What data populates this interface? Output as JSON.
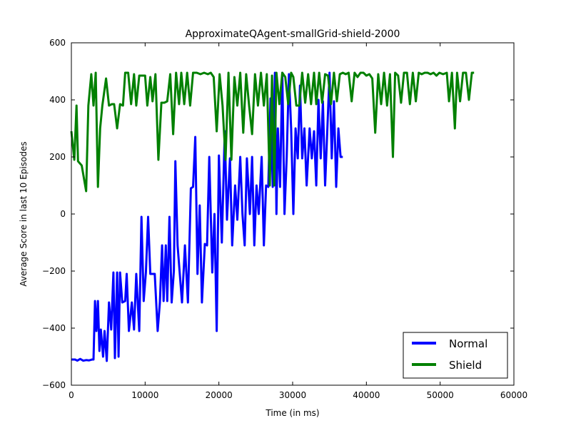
{
  "chart_data": {
    "type": "line",
    "title": "ApproximateQAgent-smallGrid-shield-2000",
    "xlabel": "Time (in ms)",
    "ylabel": "Average Score in last 10 Episodes",
    "xlim": [
      0,
      60000
    ],
    "ylim": [
      -600,
      600
    ],
    "xticks": [
      0,
      10000,
      20000,
      30000,
      40000,
      50000,
      60000
    ],
    "xtick_labels": [
      "0",
      "10000",
      "20000",
      "30000",
      "40000",
      "50000",
      "60000"
    ],
    "yticks": [
      -600,
      -400,
      -200,
      0,
      200,
      400,
      600
    ],
    "ytick_labels": [
      "−600",
      "−400",
      "−200",
      "0",
      "200",
      "400",
      "600"
    ],
    "grid": false,
    "legend_position": "lower-right",
    "series": [
      {
        "name": "Normal",
        "color": "#0000ff",
        "points": [
          [
            0,
            -510
          ],
          [
            500,
            -510
          ],
          [
            800,
            -514
          ],
          [
            1200,
            -508
          ],
          [
            1600,
            -514
          ],
          [
            2000,
            -512
          ],
          [
            2400,
            -513
          ],
          [
            2800,
            -510
          ],
          [
            3000,
            -510
          ],
          [
            3200,
            -305
          ],
          [
            3400,
            -410
          ],
          [
            3600,
            -305
          ],
          [
            3800,
            -480
          ],
          [
            4000,
            -405
          ],
          [
            4300,
            -500
          ],
          [
            4500,
            -410
          ],
          [
            4800,
            -515
          ],
          [
            5100,
            -310
          ],
          [
            5400,
            -405
          ],
          [
            5700,
            -205
          ],
          [
            5900,
            -505
          ],
          [
            6200,
            -205
          ],
          [
            6400,
            -500
          ],
          [
            6600,
            -205
          ],
          [
            6900,
            -310
          ],
          [
            7300,
            -305
          ],
          [
            7500,
            -210
          ],
          [
            7800,
            -410
          ],
          [
            8200,
            -310
          ],
          [
            8500,
            -405
          ],
          [
            8800,
            -210
          ],
          [
            9200,
            -410
          ],
          [
            9500,
            -10
          ],
          [
            9800,
            -305
          ],
          [
            10100,
            -205
          ],
          [
            10400,
            -10
          ],
          [
            10700,
            -210
          ],
          [
            11300,
            -210
          ],
          [
            11700,
            -410
          ],
          [
            12000,
            -310
          ],
          [
            12300,
            -110
          ],
          [
            12500,
            -305
          ],
          [
            12800,
            -110
          ],
          [
            13000,
            -305
          ],
          [
            13300,
            -10
          ],
          [
            13600,
            -310
          ],
          [
            13900,
            -200
          ],
          [
            14100,
            185
          ],
          [
            14400,
            -110
          ],
          [
            14700,
            -210
          ],
          [
            15000,
            -310
          ],
          [
            15400,
            -110
          ],
          [
            15800,
            -310
          ],
          [
            16200,
            90
          ],
          [
            16500,
            95
          ],
          [
            16800,
            270
          ],
          [
            17100,
            -210
          ],
          [
            17400,
            30
          ],
          [
            17700,
            -310
          ],
          [
            18100,
            -105
          ],
          [
            18400,
            -110
          ],
          [
            18700,
            200
          ],
          [
            19100,
            -205
          ],
          [
            19400,
            0
          ],
          [
            19700,
            -410
          ],
          [
            20000,
            205
          ],
          [
            20400,
            -100
          ],
          [
            20800,
            290
          ],
          [
            21100,
            -20
          ],
          [
            21500,
            195
          ],
          [
            21800,
            -110
          ],
          [
            22200,
            100
          ],
          [
            22500,
            -20
          ],
          [
            22900,
            200
          ],
          [
            23200,
            0
          ],
          [
            23500,
            -110
          ],
          [
            23800,
            195
          ],
          [
            24200,
            0
          ],
          [
            24500,
            200
          ],
          [
            24800,
            -110
          ],
          [
            25100,
            100
          ],
          [
            25400,
            0
          ],
          [
            25800,
            200
          ],
          [
            26100,
            -110
          ],
          [
            26400,
            100
          ],
          [
            26700,
            95
          ],
          [
            27000,
            405
          ],
          [
            27300,
            95
          ],
          [
            27600,
            495
          ],
          [
            27800,
            0
          ],
          [
            28000,
            300
          ],
          [
            28300,
            95
          ],
          [
            28600,
            495
          ],
          [
            28900,
            0
          ],
          [
            29200,
            200
          ],
          [
            29500,
            490
          ],
          [
            29800,
            300
          ],
          [
            30100,
            0
          ],
          [
            30400,
            300
          ],
          [
            30700,
            195
          ],
          [
            31000,
            450
          ],
          [
            31300,
            195
          ],
          [
            31600,
            300
          ],
          [
            31900,
            100
          ],
          [
            32300,
            300
          ],
          [
            32600,
            195
          ],
          [
            32900,
            290
          ],
          [
            33200,
            100
          ],
          [
            33500,
            400
          ],
          [
            33800,
            195
          ],
          [
            34100,
            395
          ],
          [
            34400,
            100
          ],
          [
            34700,
            295
          ],
          [
            35000,
            495
          ],
          [
            35300,
            195
          ],
          [
            35600,
            395
          ],
          [
            35900,
            95
          ],
          [
            36200,
            300
          ],
          [
            36500,
            200
          ],
          [
            36800,
            200
          ]
        ]
      },
      {
        "name": "Shield",
        "color": "#008000",
        "points": [
          [
            0,
            290
          ],
          [
            400,
            190
          ],
          [
            700,
            380
          ],
          [
            900,
            185
          ],
          [
            1400,
            170
          ],
          [
            2000,
            80
          ],
          [
            2300,
            380
          ],
          [
            2700,
            490
          ],
          [
            3000,
            380
          ],
          [
            3300,
            495
          ],
          [
            3600,
            95
          ],
          [
            3900,
            300
          ],
          [
            4200,
            380
          ],
          [
            4700,
            475
          ],
          [
            5100,
            380
          ],
          [
            5500,
            385
          ],
          [
            5800,
            385
          ],
          [
            6200,
            300
          ],
          [
            6600,
            385
          ],
          [
            7000,
            380
          ],
          [
            7300,
            495
          ],
          [
            7700,
            495
          ],
          [
            8100,
            385
          ],
          [
            8500,
            490
          ],
          [
            8800,
            380
          ],
          [
            9200,
            485
          ],
          [
            9600,
            485
          ],
          [
            10000,
            485
          ],
          [
            10300,
            380
          ],
          [
            10700,
            480
          ],
          [
            11000,
            395
          ],
          [
            11400,
            490
          ],
          [
            11800,
            190
          ],
          [
            12200,
            390
          ],
          [
            12600,
            390
          ],
          [
            13000,
            395
          ],
          [
            13400,
            490
          ],
          [
            13800,
            280
          ],
          [
            14200,
            495
          ],
          [
            14600,
            385
          ],
          [
            14900,
            495
          ],
          [
            15300,
            385
          ],
          [
            15700,
            495
          ],
          [
            16100,
            380
          ],
          [
            16500,
            495
          ],
          [
            17000,
            495
          ],
          [
            17500,
            490
          ],
          [
            18000,
            495
          ],
          [
            18500,
            490
          ],
          [
            18900,
            495
          ],
          [
            19300,
            480
          ],
          [
            19700,
            290
          ],
          [
            20100,
            490
          ],
          [
            20500,
            380
          ],
          [
            20900,
            190
          ],
          [
            21300,
            495
          ],
          [
            21700,
            190
          ],
          [
            22100,
            480
          ],
          [
            22500,
            380
          ],
          [
            22900,
            495
          ],
          [
            23300,
            285
          ],
          [
            23700,
            490
          ],
          [
            24100,
            380
          ],
          [
            24500,
            280
          ],
          [
            24900,
            490
          ],
          [
            25300,
            380
          ],
          [
            25700,
            495
          ],
          [
            26100,
            380
          ],
          [
            26500,
            490
          ],
          [
            26900,
            100
          ],
          [
            27200,
            485
          ],
          [
            27500,
            100
          ],
          [
            27800,
            495
          ],
          [
            28200,
            385
          ],
          [
            28600,
            495
          ],
          [
            29000,
            480
          ],
          [
            29400,
            385
          ],
          [
            29800,
            495
          ],
          [
            30100,
            480
          ],
          [
            30500,
            380
          ],
          [
            30900,
            380
          ],
          [
            31300,
            495
          ],
          [
            31700,
            390
          ],
          [
            32100,
            490
          ],
          [
            32500,
            385
          ],
          [
            32900,
            495
          ],
          [
            33200,
            385
          ],
          [
            33600,
            495
          ],
          [
            34000,
            390
          ],
          [
            34400,
            490
          ],
          [
            34800,
            485
          ],
          [
            35200,
            385
          ],
          [
            35600,
            495
          ],
          [
            36000,
            395
          ],
          [
            36400,
            490
          ],
          [
            36800,
            495
          ],
          [
            37200,
            490
          ],
          [
            37600,
            495
          ],
          [
            38000,
            395
          ],
          [
            38400,
            495
          ],
          [
            38800,
            480
          ],
          [
            39200,
            495
          ],
          [
            39600,
            495
          ],
          [
            40000,
            485
          ],
          [
            40400,
            490
          ],
          [
            40800,
            475
          ],
          [
            41200,
            285
          ],
          [
            41600,
            490
          ],
          [
            42000,
            385
          ],
          [
            42400,
            495
          ],
          [
            42800,
            380
          ],
          [
            43200,
            490
          ],
          [
            43600,
            200
          ],
          [
            43900,
            495
          ],
          [
            44300,
            485
          ],
          [
            44700,
            390
          ],
          [
            45100,
            495
          ],
          [
            45500,
            495
          ],
          [
            45900,
            385
          ],
          [
            46300,
            495
          ],
          [
            46700,
            395
          ],
          [
            47100,
            495
          ],
          [
            47500,
            490
          ],
          [
            47900,
            495
          ],
          [
            48300,
            495
          ],
          [
            48700,
            490
          ],
          [
            49100,
            495
          ],
          [
            49500,
            485
          ],
          [
            49900,
            495
          ],
          [
            50400,
            490
          ],
          [
            50900,
            495
          ],
          [
            51200,
            395
          ],
          [
            51600,
            495
          ],
          [
            52000,
            300
          ],
          [
            52300,
            495
          ],
          [
            52700,
            395
          ],
          [
            53100,
            495
          ],
          [
            53500,
            495
          ],
          [
            53900,
            400
          ],
          [
            54300,
            495
          ],
          [
            54600,
            495
          ]
        ]
      }
    ]
  }
}
